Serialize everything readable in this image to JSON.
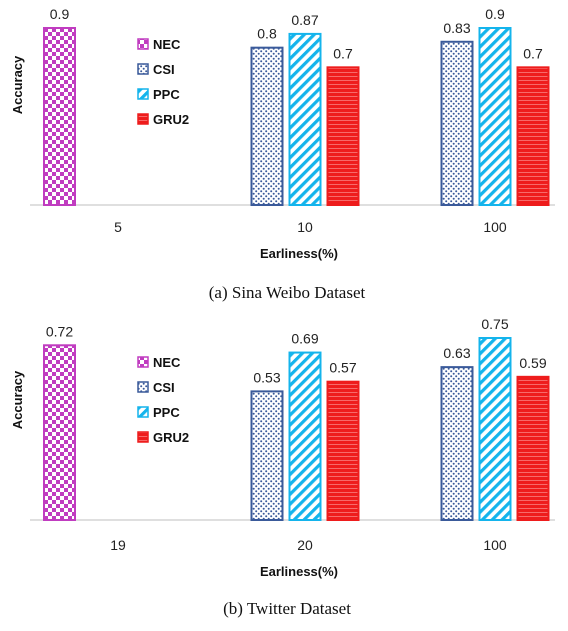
{
  "colors": {
    "NEC": "#c03cc0",
    "CSI": "#3a5a9a",
    "PPC": "#14b4ec",
    "GRU2": "#ee1c1c"
  },
  "chart_data": [
    {
      "type": "bar",
      "caption": "(a) Sina Weibo Dataset",
      "xlabel": "Earliness(%)",
      "ylabel": "Accuracy",
      "ylim": [
        0,
        0.9
      ],
      "categories": [
        "5",
        "10",
        "100"
      ],
      "legend": [
        "NEC",
        "CSI",
        "PPC",
        "GRU2"
      ],
      "legend_position": "upper-left",
      "series": [
        {
          "name": "NEC",
          "values": [
            0.9,
            null,
            null
          ]
        },
        {
          "name": "CSI",
          "values": [
            null,
            0.8,
            0.83
          ]
        },
        {
          "name": "PPC",
          "values": [
            null,
            0.87,
            0.9
          ]
        },
        {
          "name": "GRU2",
          "values": [
            null,
            0.7,
            0.7
          ]
        }
      ]
    },
    {
      "type": "bar",
      "caption": "(b) Twitter Dataset",
      "xlabel": "Earliness(%)",
      "ylabel": "Accuracy",
      "ylim": [
        0,
        0.75
      ],
      "categories": [
        "19",
        "20",
        "100"
      ],
      "legend": [
        "NEC",
        "CSI",
        "PPC",
        "GRU2"
      ],
      "legend_position": "upper-left",
      "series": [
        {
          "name": "NEC",
          "values": [
            0.72,
            null,
            null
          ]
        },
        {
          "name": "CSI",
          "values": [
            null,
            0.53,
            0.63
          ]
        },
        {
          "name": "PPC",
          "values": [
            null,
            0.69,
            0.75
          ]
        },
        {
          "name": "GRU2",
          "values": [
            null,
            0.57,
            0.59
          ]
        }
      ]
    }
  ]
}
